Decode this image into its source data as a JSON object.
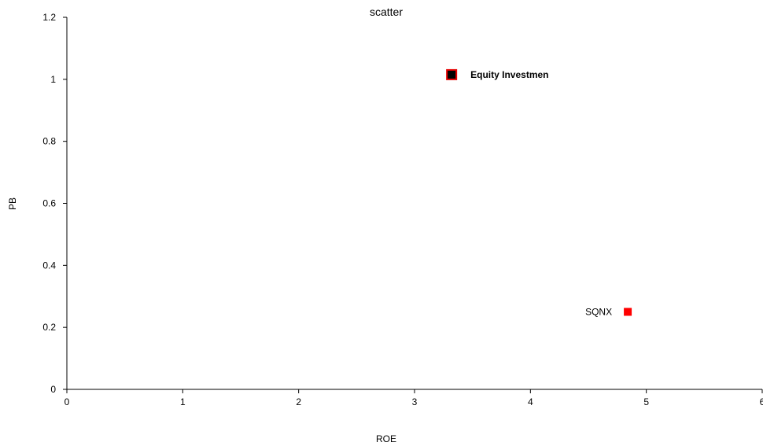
{
  "chart_data": {
    "type": "scatter",
    "title": "scatter",
    "xlabel": "ROE",
    "ylabel": "PB",
    "xlim": [
      0,
      6
    ],
    "ylim": [
      0,
      1.2
    ],
    "x_ticks": [
      "0",
      "1",
      "2",
      "3",
      "4",
      "5",
      "6"
    ],
    "y_ticks": [
      "0",
      "0.2",
      "0.4",
      "0.6",
      "0.8",
      "1",
      "1.2"
    ],
    "grid": false,
    "points": [
      {
        "label": "Equity Investmen",
        "x": 3.32,
        "y": 1.015,
        "fill": "#000000",
        "stroke": "#e60000",
        "highlighted": true,
        "label_side": "right"
      },
      {
        "label": "SQNX",
        "x": 4.84,
        "y": 0.25,
        "fill": "#ff0000",
        "stroke": "#ff0000",
        "highlighted": false,
        "label_side": "left"
      }
    ]
  }
}
